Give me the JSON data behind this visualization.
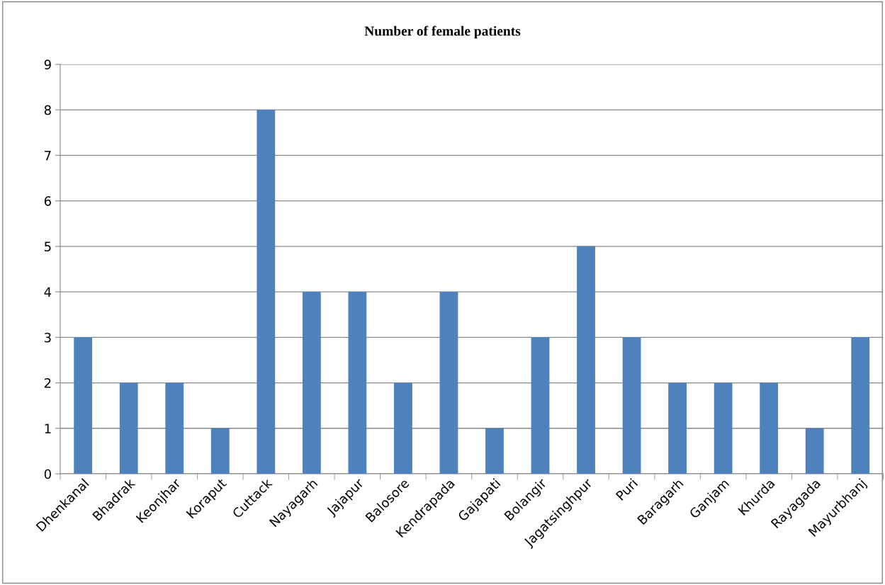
{
  "chart_data": {
    "type": "bar",
    "title": "Number of female patients",
    "categories": [
      "Dhenkanal",
      "Bhadrak",
      "Keonjhar",
      "Koraput",
      "Cuttack",
      "Nayagarh",
      "Jajapur",
      "Balosore",
      "Kendrapada",
      "Gajapati",
      "Bolangir",
      "Jagatsinghpur",
      "Puri",
      "Baragarh",
      "Ganjam",
      "Khurda",
      "Rayagada",
      "Mayurbhanj"
    ],
    "values": [
      3,
      2,
      2,
      1,
      8,
      4,
      4,
      2,
      4,
      1,
      3,
      5,
      3,
      2,
      2,
      2,
      1,
      3
    ],
    "color": "#4f81bd",
    "ylim": [
      0,
      9
    ],
    "yticks": [
      0,
      1,
      2,
      3,
      4,
      5,
      6,
      7,
      8,
      9
    ],
    "grid": "y",
    "legend": false
  }
}
